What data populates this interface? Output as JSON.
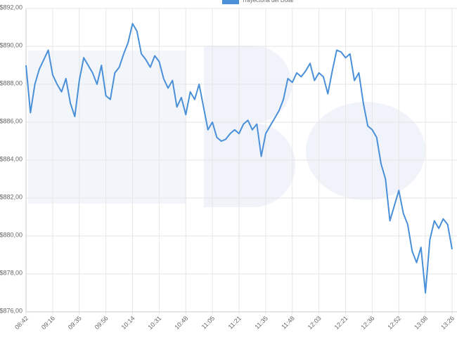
{
  "chart_data": {
    "type": "line",
    "legend": "top",
    "categories": [
      "08:42",
      null,
      null,
      null,
      null,
      null,
      "09:16",
      null,
      null,
      null,
      null,
      null,
      "09:35",
      null,
      null,
      null,
      null,
      null,
      "09:56",
      null,
      null,
      null,
      null,
      null,
      "10:14",
      null,
      null,
      null,
      null,
      null,
      "10:31",
      null,
      null,
      null,
      null,
      null,
      "10:48",
      null,
      null,
      null,
      null,
      null,
      "11:05",
      null,
      null,
      null,
      null,
      null,
      "11:21",
      null,
      null,
      null,
      null,
      null,
      "11:35",
      null,
      null,
      null,
      null,
      null,
      "11:48",
      null,
      null,
      null,
      null,
      null,
      "12:03",
      null,
      null,
      null,
      null,
      null,
      "12:21",
      null,
      null,
      null,
      null,
      null,
      "12:36",
      null,
      null,
      null,
      null,
      null,
      "12:52",
      null,
      null,
      null,
      null,
      null,
      "13:08",
      null,
      null,
      null,
      null,
      null,
      "13:26"
    ],
    "series": [
      {
        "name": "Trayectoria del Dólar",
        "color": "#4a90d9",
        "values": [
          889,
          886.5,
          888,
          888.8,
          889.3,
          889.8,
          888.5,
          888,
          887.6,
          888.3,
          887,
          886.3,
          888.2,
          889.4,
          889,
          888.6,
          888,
          889,
          887.4,
          887.2,
          888.6,
          888.9,
          889.6,
          890.2,
          891.2,
          890.8,
          889.6,
          889.3,
          888.9,
          889.5,
          889.2,
          888.3,
          887.8,
          888.2,
          886.8,
          887.3,
          886.4,
          887.6,
          887.2,
          888,
          886.8,
          885.6,
          886,
          885.2,
          885,
          885.1,
          885.4,
          885.6,
          885.4,
          885.9,
          886.1,
          885.6,
          885.9,
          884.2,
          885.4,
          885.8,
          886.2,
          886.6,
          887.2,
          888.3,
          888.1,
          888.6,
          888.4,
          888.7,
          889.1,
          888.2,
          888.6,
          888.4,
          887.5,
          888.7,
          889.8,
          889.7,
          889.4,
          889.6,
          888.2,
          888.6,
          887,
          885.8,
          885.6,
          885.2,
          883.8,
          883,
          880.8,
          881.6,
          882.4,
          881.2,
          880.6,
          879.2,
          878.6,
          879.4,
          877,
          879.8,
          880.8,
          880.4,
          880.9,
          880.6,
          879.3
        ]
      }
    ],
    "ylim": [
      876,
      892
    ],
    "yticks": [
      {
        "value": 876,
        "label": "$876,00"
      },
      {
        "value": 878,
        "label": "$878,00"
      },
      {
        "value": 880,
        "label": "$880,00"
      },
      {
        "value": 882,
        "label": "$882,00"
      },
      {
        "value": 884,
        "label": "$884,00"
      },
      {
        "value": 886,
        "label": "$886,00"
      },
      {
        "value": 888,
        "label": "$888,00"
      },
      {
        "value": 890,
        "label": "$890,00"
      },
      {
        "value": 892,
        "label": "$892,00"
      }
    ],
    "grid": true
  }
}
